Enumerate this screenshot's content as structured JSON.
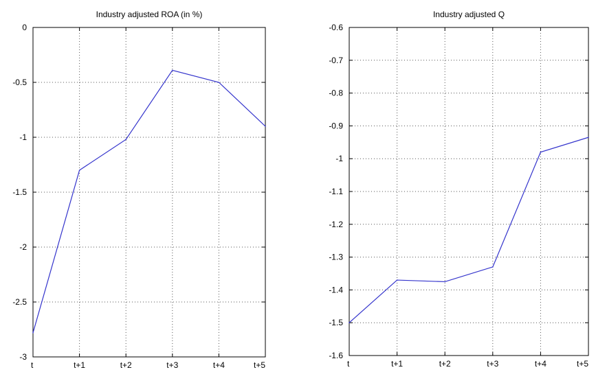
{
  "chart_data": [
    {
      "type": "line",
      "title": "Industry adjusted ROA (in %)",
      "xlabel": "",
      "ylabel": "",
      "categories": [
        "t",
        "t+1",
        "t+2",
        "t+3",
        "t+4",
        "t+5"
      ],
      "series": [
        {
          "values": [
            -2.78,
            -1.3,
            -1.02,
            -0.39,
            -0.5,
            -0.9
          ]
        }
      ],
      "ylim": [
        -3,
        0
      ],
      "yticks": [
        -3,
        -2.5,
        -2,
        -1.5,
        -1,
        -0.5,
        0
      ],
      "ytick_labels": [
        "-3",
        "-2.5",
        "-2",
        "-1.5",
        "-1",
        "-0.5",
        "0"
      ],
      "grid": true,
      "color": "#3333cc"
    },
    {
      "type": "line",
      "title": "Industry adjusted Q",
      "xlabel": "",
      "ylabel": "",
      "categories": [
        "t",
        "t+1",
        "t+2",
        "t+3",
        "t+4",
        "t+5"
      ],
      "series": [
        {
          "values": [
            -1.5,
            -1.37,
            -1.375,
            -1.33,
            -0.98,
            -0.935
          ]
        }
      ],
      "ylim": [
        -1.6,
        -0.6
      ],
      "yticks": [
        -1.6,
        -1.5,
        -1.4,
        -1.3,
        -1.2,
        -1.1,
        -1.0,
        -0.9,
        -0.8,
        -0.7,
        -0.6
      ],
      "ytick_labels": [
        "-1.6",
        "-1.5",
        "-1.4",
        "-1.3",
        "-1.2",
        "-1.1",
        "-1",
        "-0.9",
        "-0.8",
        "-0.7",
        "-0.6"
      ],
      "grid": true,
      "color": "#3333cc"
    }
  ]
}
